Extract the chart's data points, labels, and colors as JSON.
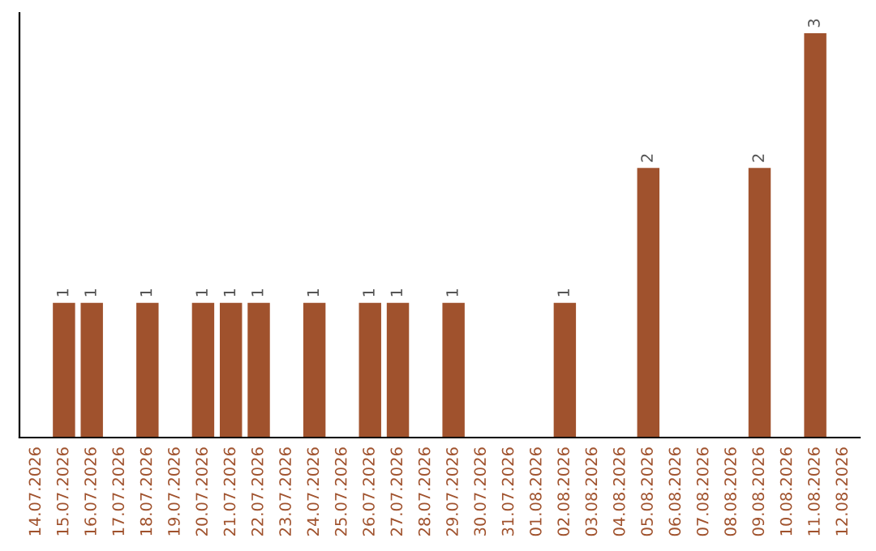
{
  "chart_data": {
    "type": "bar",
    "categories": [
      "14.07.2026",
      "15.07.2026",
      "16.07.2026",
      "17.07.2026",
      "18.07.2026",
      "19.07.2026",
      "20.07.2026",
      "21.07.2026",
      "22.07.2026",
      "23.07.2026",
      "24.07.2026",
      "25.07.2026",
      "26.07.2026",
      "27.07.2026",
      "28.07.2026",
      "29.07.2026",
      "30.07.2026",
      "31.07.2026",
      "01.08.2026",
      "02.08.2026",
      "03.08.2026",
      "04.08.2026",
      "05.08.2026",
      "06.08.2026",
      "07.08.2026",
      "08.08.2026",
      "09.08.2026",
      "10.08.2026",
      "11.08.2026",
      "12.08.2026"
    ],
    "values": [
      null,
      1,
      1,
      null,
      1,
      null,
      1,
      1,
      1,
      null,
      1,
      null,
      1,
      1,
      null,
      1,
      null,
      null,
      null,
      1,
      null,
      null,
      2,
      null,
      null,
      null,
      2,
      null,
      3,
      null
    ],
    "color": "#a0522d",
    "data_labels": true,
    "tick_labels": "x",
    "grid": false,
    "legend": false
  }
}
